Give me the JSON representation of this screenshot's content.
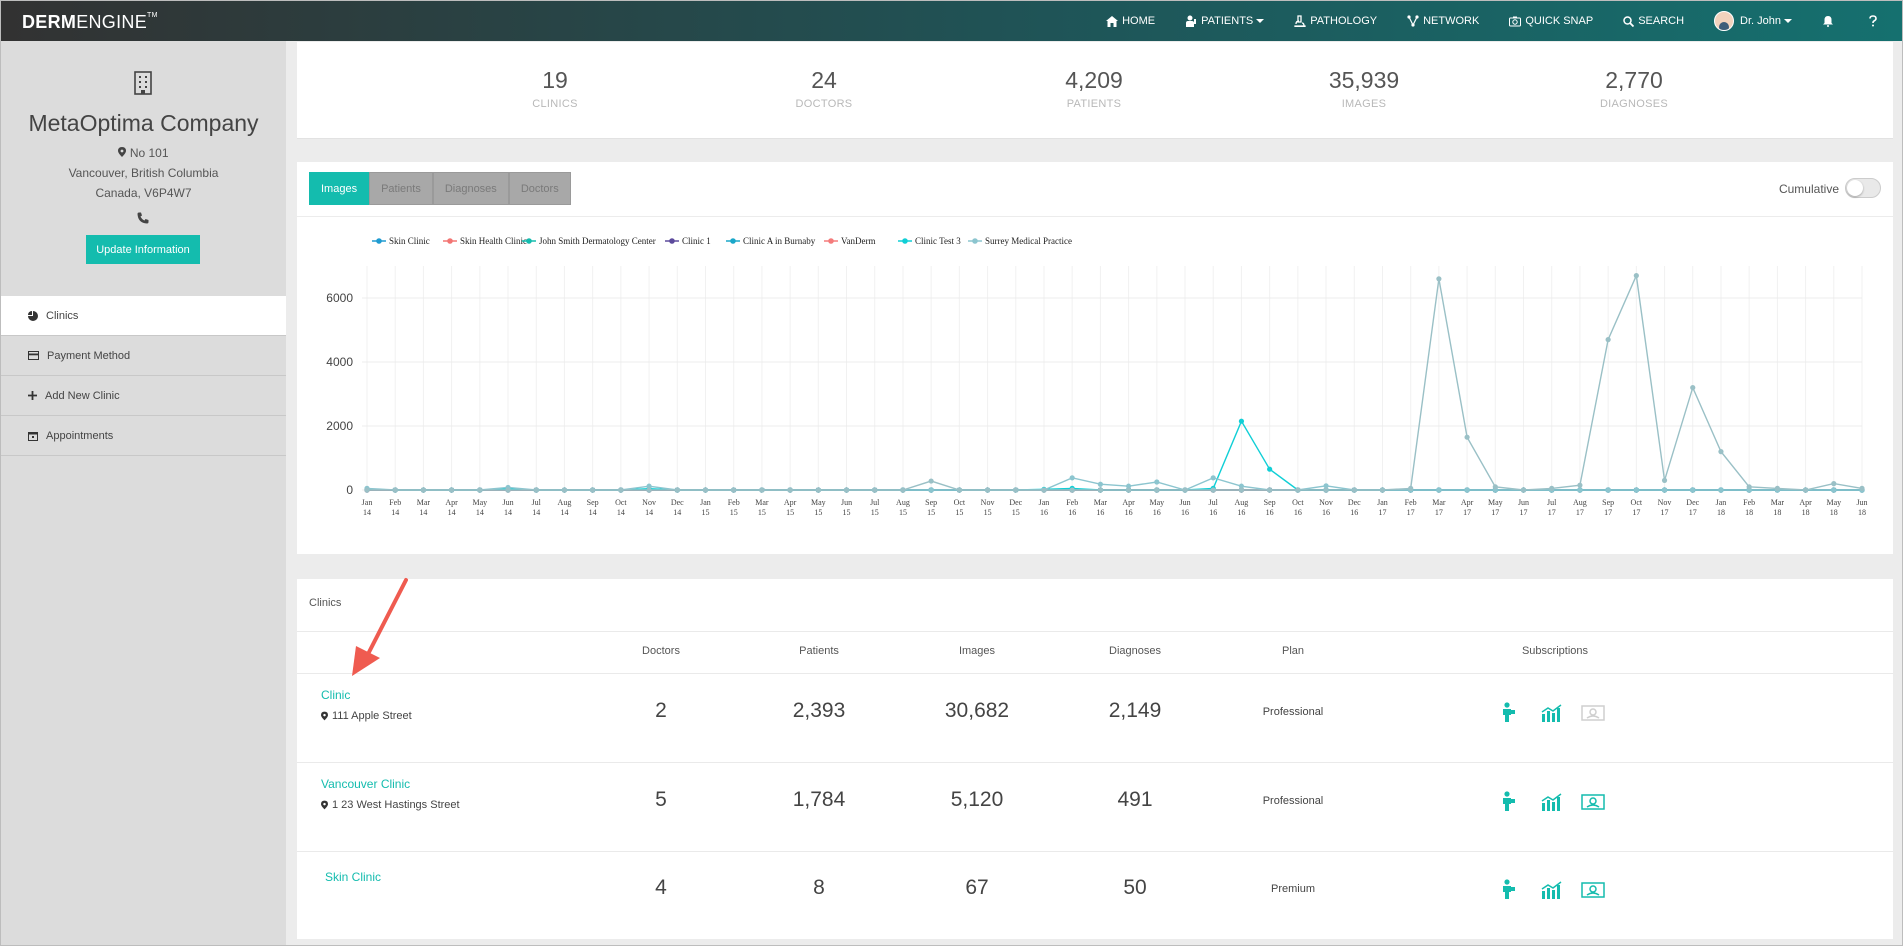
{
  "app": {
    "logo_bold": "DERM",
    "logo_light": "ENGINE",
    "logo_tm": "TM"
  },
  "nav": {
    "home": "HOME",
    "patients": "PATIENTS",
    "pathology": "PATHOLOGY",
    "network": "NETWORK",
    "quick_snap": "QUICK SNAP",
    "search": "SEARCH",
    "user": "Dr. John"
  },
  "company": {
    "name": "MetaOptima Company",
    "address_line1": "No 101",
    "address_line2": "Vancouver, British Columbia",
    "address_line3": "Canada, V6P4W7",
    "update_button": "Update Information"
  },
  "menu": [
    {
      "label": "Clinics",
      "icon": "pie-chart-icon",
      "active": true
    },
    {
      "label": "Payment Method",
      "icon": "credit-card-icon"
    },
    {
      "label": "Add New Clinic",
      "icon": "plus-icon"
    },
    {
      "label": "Appointments",
      "icon": "calendar-icon"
    }
  ],
  "stats": [
    {
      "value": "19",
      "label": "CLINICS"
    },
    {
      "value": "24",
      "label": "DOCTORS"
    },
    {
      "value": "4,209",
      "label": "PATIENTS"
    },
    {
      "value": "35,939",
      "label": "IMAGES"
    },
    {
      "value": "2,770",
      "label": "DIAGNOSES"
    }
  ],
  "tabs": [
    "Images",
    "Patients",
    "Diagnoses",
    "Doctors"
  ],
  "cumulative_label": "Cumulative",
  "chart_data": {
    "type": "line",
    "x": [
      "Jan 14",
      "Feb 14",
      "Mar 14",
      "Apr 14",
      "May 14",
      "Jun 14",
      "Jul 14",
      "Aug 14",
      "Sep 14",
      "Oct 14",
      "Nov 14",
      "Dec 14",
      "Jan 15",
      "Feb 15",
      "Mar 15",
      "Apr 15",
      "May 15",
      "Jun 15",
      "Jul 15",
      "Aug 15",
      "Sep 15",
      "Oct 15",
      "Nov 15",
      "Dec 15",
      "Jan 16",
      "Feb 16",
      "Mar 16",
      "Apr 16",
      "May 16",
      "Jun 16",
      "Jul 16",
      "Aug 16",
      "Sep 16",
      "Oct 16",
      "Nov 16",
      "Dec 16",
      "Jan 17",
      "Feb 17",
      "Mar 17",
      "Apr 17",
      "May 17",
      "Jun 17",
      "Jul 17",
      "Aug 17",
      "Sep 17",
      "Oct 17",
      "Nov 17",
      "Dec 17",
      "Jan 18",
      "Feb 18",
      "Mar 18",
      "Apr 18",
      "May 18",
      "Jun 18"
    ],
    "x_month": [
      "Jan",
      "Feb",
      "Mar",
      "Apr",
      "May",
      "Jun",
      "Jul",
      "Aug",
      "Sep",
      "Oct",
      "Nov",
      "Dec",
      "Jan",
      "Feb",
      "Mar",
      "Apr",
      "May",
      "Jun",
      "Jul",
      "Aug",
      "Sep",
      "Oct",
      "Nov",
      "Dec",
      "Jan",
      "Feb",
      "Mar",
      "Apr",
      "May",
      "Jun",
      "Jul",
      "Aug",
      "Sep",
      "Oct",
      "Nov",
      "Dec",
      "Jan",
      "Feb",
      "Mar",
      "Apr",
      "May",
      "Jun",
      "Jul",
      "Aug",
      "Sep",
      "Oct",
      "Nov",
      "Dec",
      "Jan",
      "Feb",
      "Mar",
      "Apr",
      "May",
      "Jun"
    ],
    "x_year": [
      "14",
      "14",
      "14",
      "14",
      "14",
      "14",
      "14",
      "14",
      "14",
      "14",
      "14",
      "14",
      "15",
      "15",
      "15",
      "15",
      "15",
      "15",
      "15",
      "15",
      "15",
      "15",
      "15",
      "15",
      "16",
      "16",
      "16",
      "16",
      "16",
      "16",
      "16",
      "16",
      "16",
      "16",
      "16",
      "16",
      "17",
      "17",
      "17",
      "17",
      "17",
      "17",
      "17",
      "17",
      "17",
      "17",
      "17",
      "17",
      "18",
      "18",
      "18",
      "18",
      "18",
      "18"
    ],
    "yticks": [
      0,
      2000,
      4000,
      6000
    ],
    "ylim": [
      0,
      7000
    ],
    "grid": true,
    "legend_position": "top",
    "series": [
      {
        "name": "Skin Clinic",
        "color": "#1f9bd1",
        "values": [
          0,
          0,
          0,
          0,
          0,
          0,
          0,
          0,
          0,
          0,
          0,
          0,
          0,
          0,
          0,
          0,
          0,
          0,
          0,
          0,
          0,
          0,
          0,
          0,
          0,
          0,
          0,
          0,
          0,
          0,
          0,
          0,
          0,
          0,
          0,
          0,
          0,
          0,
          0,
          0,
          0,
          0,
          0,
          0,
          0,
          0,
          0,
          0,
          0,
          0,
          0,
          0,
          0,
          0
        ]
      },
      {
        "name": "Skin Health Clinic",
        "color": "#f27573",
        "values": [
          0,
          0,
          0,
          0,
          0,
          0,
          0,
          0,
          0,
          0,
          0,
          0,
          0,
          0,
          0,
          0,
          0,
          0,
          0,
          0,
          0,
          0,
          0,
          0,
          0,
          0,
          0,
          0,
          0,
          0,
          0,
          0,
          0,
          0,
          0,
          0,
          0,
          0,
          0,
          0,
          0,
          0,
          0,
          0,
          0,
          0,
          0,
          0,
          0,
          0,
          0,
          0,
          0,
          0
        ]
      },
      {
        "name": "John Smith Dermatology Center",
        "color": "#14bcae",
        "values": [
          0,
          0,
          0,
          0,
          0,
          0,
          0,
          0,
          0,
          0,
          0,
          0,
          0,
          0,
          0,
          0,
          0,
          0,
          0,
          0,
          0,
          0,
          0,
          0,
          0,
          0,
          0,
          0,
          0,
          0,
          0,
          0,
          0,
          0,
          0,
          0,
          0,
          0,
          0,
          0,
          0,
          0,
          0,
          0,
          0,
          0,
          0,
          0,
          0,
          0,
          0,
          0,
          0,
          0
        ]
      },
      {
        "name": "Clinic 1",
        "color": "#5c4a9c",
        "values": [
          0,
          0,
          0,
          0,
          0,
          0,
          0,
          0,
          0,
          0,
          0,
          0,
          0,
          0,
          0,
          0,
          0,
          0,
          0,
          0,
          0,
          0,
          0,
          0,
          0,
          0,
          0,
          0,
          0,
          0,
          0,
          0,
          0,
          0,
          0,
          0,
          0,
          0,
          0,
          0,
          0,
          0,
          0,
          0,
          0,
          0,
          0,
          0,
          0,
          0,
          0,
          0,
          0,
          0
        ]
      },
      {
        "name": "Clinic A in Burnaby",
        "color": "#1aa7c9",
        "values": [
          0,
          0,
          0,
          0,
          0,
          0,
          0,
          0,
          0,
          0,
          0,
          0,
          0,
          0,
          0,
          0,
          0,
          0,
          0,
          0,
          0,
          0,
          0,
          0,
          0,
          0,
          0,
          0,
          0,
          0,
          0,
          0,
          0,
          0,
          0,
          0,
          0,
          0,
          0,
          0,
          0,
          0,
          0,
          0,
          0,
          0,
          0,
          0,
          0,
          0,
          0,
          0,
          0,
          0
        ]
      },
      {
        "name": "VanDerm",
        "color": "#f47b7b",
        "values": [
          0,
          0,
          0,
          0,
          0,
          0,
          0,
          0,
          0,
          0,
          0,
          0,
          0,
          0,
          0,
          0,
          0,
          0,
          0,
          0,
          0,
          0,
          0,
          0,
          0,
          0,
          0,
          0,
          0,
          0,
          0,
          0,
          0,
          0,
          0,
          0,
          0,
          0,
          0,
          0,
          0,
          0,
          0,
          0,
          0,
          0,
          0,
          0,
          0,
          0,
          0,
          0,
          0,
          0
        ]
      },
      {
        "name": "Clinic Test 3",
        "color": "#10cfd6",
        "values": [
          30,
          0,
          0,
          0,
          0,
          30,
          0,
          0,
          0,
          0,
          40,
          0,
          0,
          0,
          0,
          0,
          0,
          0,
          0,
          0,
          0,
          0,
          0,
          0,
          20,
          50,
          0,
          0,
          0,
          0,
          50,
          2150,
          650,
          0,
          0,
          0,
          0,
          0,
          0,
          0,
          0,
          0,
          0,
          0,
          0,
          0,
          0,
          0,
          0,
          0,
          0,
          0,
          0,
          0
        ]
      },
      {
        "name": "Surrey Medical Practice",
        "color": "#8cc5cf",
        "values": [
          50,
          0,
          0,
          0,
          0,
          80,
          0,
          0,
          0,
          0,
          120,
          0,
          0,
          0,
          0,
          0,
          0,
          0,
          0,
          0,
          0,
          0,
          0,
          0,
          0,
          380,
          180,
          120,
          250,
          0,
          380,
          120,
          0,
          0,
          130,
          0,
          0,
          0,
          0,
          0,
          0,
          0,
          0,
          0,
          0,
          0,
          0,
          0,
          0,
          0,
          0,
          0,
          0,
          0
        ]
      },
      {
        "name": "",
        "color": "#9ac0c6",
        "values": [
          0,
          0,
          0,
          0,
          0,
          0,
          0,
          0,
          0,
          0,
          0,
          0,
          0,
          0,
          0,
          0,
          0,
          0,
          0,
          0,
          280,
          0,
          0,
          0,
          0,
          0,
          0,
          0,
          0,
          0,
          0,
          0,
          0,
          0,
          0,
          0,
          0,
          50,
          6600,
          1650,
          100,
          0,
          50,
          150,
          4700,
          6700,
          300,
          3200,
          1200,
          100,
          50,
          0,
          200,
          50
        ]
      }
    ]
  },
  "clinics": {
    "title": "Clinics",
    "headers": {
      "doctors": "Doctors",
      "patients": "Patients",
      "images": "Images",
      "diagnoses": "Diagnoses",
      "plan": "Plan",
      "subscriptions": "Subscriptions"
    },
    "rows": [
      {
        "name": "Clinic",
        "address": "111 Apple Street",
        "doctors": "2",
        "patients": "2,393",
        "images": "30,682",
        "diagnoses": "2,149",
        "plan": "Professional",
        "sub3_active": false
      },
      {
        "name": "Vancouver Clinic",
        "address": "1 23  West Hastings Street",
        "doctors": "5",
        "patients": "1,784",
        "images": "5,120",
        "diagnoses": "491",
        "plan": "Professional",
        "sub3_active": true
      },
      {
        "name": "Skin Clinic",
        "address": "",
        "doctors": "4",
        "patients": "8",
        "images": "67",
        "diagnoses": "50",
        "plan": "Premium",
        "sub3_active": true
      }
    ]
  },
  "colors": {
    "accent": "#14bcae",
    "arrow": "#ef5b50"
  }
}
